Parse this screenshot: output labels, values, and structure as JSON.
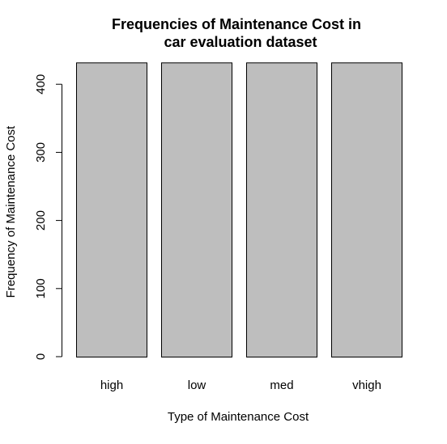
{
  "chart_data": {
    "type": "bar",
    "title": [
      "Frequencies of Maintenance Cost in",
      "car evaluation dataset"
    ],
    "xlabel": "Type of Maintenance Cost",
    "ylabel": "Frequency of Maintenance Cost",
    "categories": [
      "high",
      "low",
      "med",
      "vhigh"
    ],
    "values": [
      432,
      432,
      432,
      432
    ],
    "ylim": [
      0,
      432
    ],
    "y_ticks": [
      0,
      100,
      200,
      300,
      400
    ],
    "bar_color": "#bebebe",
    "bar_border_color": "#000000",
    "grid": false,
    "legend": "none"
  }
}
